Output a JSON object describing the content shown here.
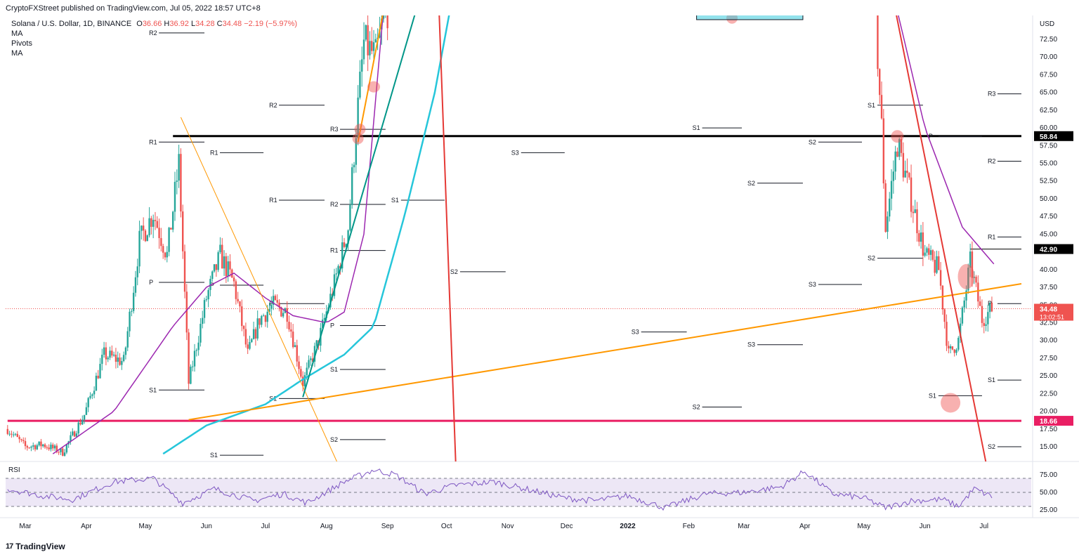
{
  "header": {
    "publisher_line": "CryptoFXStreet published on TradingView.com, Jul 05, 2022 18:57 UTC+8",
    "symbol": "Solana / U.S. Dollar, 1D, BINANCE",
    "o_label": "O",
    "o_value": "36.66",
    "h_label": "H",
    "h_value": "36.92",
    "l_label": "L",
    "l_value": "34.28",
    "c_label": "C",
    "c_value": "34.48",
    "change": "−2.19 (−5.97%)",
    "indicators": [
      "MA",
      "Pivots",
      "MA"
    ]
  },
  "branding": {
    "logo_text": "TradingView",
    "logo_mark": "17"
  },
  "colors": {
    "up": "#26a69a",
    "down": "#ef5350",
    "ma_fast": "#9c27b0",
    "ma_slow": "#26c6da",
    "orange": "#ff9800",
    "green_trend": "#009688",
    "red_trend": "#e53935",
    "level_black": "#000000",
    "level_pink": "#e91e63",
    "rsi": "#7e57c2",
    "rsi_band": "#ede7f6"
  },
  "chart_data": {
    "type": "candlestick",
    "currency": "USD",
    "y_ticks": [
      15.0,
      17.5,
      20.0,
      22.5,
      25.0,
      27.5,
      30.0,
      32.5,
      35.0,
      37.5,
      40.0,
      42.5,
      45.0,
      47.5,
      50.0,
      52.5,
      55.0,
      57.5,
      60.0,
      62.5,
      65.0,
      67.5,
      70.0,
      72.5
    ],
    "y_tick_labels": [
      "15.00",
      "17.50",
      "20.00",
      "22.50",
      "25.00",
      "27.50",
      "30.00",
      "32.50",
      "35.00",
      "37.50",
      "40.00",
      "42.50",
      "45.00",
      "47.50",
      "50.00",
      "52.50",
      "55.00",
      "57.50",
      "60.00",
      "62.50",
      "65.00",
      "67.50",
      "70.00",
      "72.50"
    ],
    "x_labels": [
      "Mar",
      "Apr",
      "May",
      "Jun",
      "Jul",
      "Aug",
      "Sep",
      "Oct",
      "Nov",
      "Dec",
      "2022",
      "Feb",
      "Mar",
      "Apr",
      "May",
      "Jun",
      "Jul"
    ],
    "price_badges": [
      {
        "value": 58.84,
        "label": "58.84",
        "color": "#000000"
      },
      {
        "value": 42.9,
        "label": "42.90",
        "color": "#000000"
      },
      {
        "value": 18.66,
        "label": "18.66",
        "color": "#e91e63"
      },
      {
        "value": 34.48,
        "label": "34.48",
        "sub": "13:02:51",
        "color": "#ef5350"
      }
    ],
    "horizontal_levels": [
      {
        "value": 58.84,
        "color": "#000000",
        "from": "2021-05-15",
        "to": "2022-07-20"
      },
      {
        "value": 18.66,
        "color": "#e91e63",
        "from": "2021-02-20",
        "to": "2022-07-20"
      },
      {
        "value": 42.9,
        "color": "#000000",
        "from": "2022-06-24",
        "to": "2022-07-20"
      }
    ],
    "pivot_lines": [
      {
        "label": "R2",
        "value": 73.4,
        "from": "2021-04-30",
        "to": "2021-05-31"
      },
      {
        "label": "R1",
        "value": 58.0,
        "from": "2021-04-30",
        "to": "2021-05-31"
      },
      {
        "label": "P",
        "value": 38.2,
        "from": "2021-04-30",
        "to": "2021-05-31"
      },
      {
        "label": "S1",
        "value": 23.0,
        "from": "2021-04-30",
        "to": "2021-05-31"
      },
      {
        "label": "R1",
        "value": 56.5,
        "from": "2021-05-31",
        "to": "2021-06-30"
      },
      {
        "label": "P",
        "value": 37.8,
        "from": "2021-05-31",
        "to": "2021-06-30"
      },
      {
        "label": "S1",
        "value": 13.8,
        "from": "2021-05-31",
        "to": "2021-06-30"
      },
      {
        "label": "R2",
        "value": 63.2,
        "from": "2021-06-30",
        "to": "2021-07-31"
      },
      {
        "label": "R1",
        "value": 49.8,
        "from": "2021-06-30",
        "to": "2021-07-31"
      },
      {
        "label": "P",
        "value": 35.2,
        "from": "2021-06-30",
        "to": "2021-07-31"
      },
      {
        "label": "S1",
        "value": 21.8,
        "from": "2021-06-30",
        "to": "2021-07-31"
      },
      {
        "label": "R3",
        "value": 59.8,
        "from": "2021-07-31",
        "to": "2021-08-31"
      },
      {
        "label": "R2",
        "value": 49.2,
        "from": "2021-07-31",
        "to": "2021-08-31"
      },
      {
        "label": "R1",
        "value": 42.7,
        "from": "2021-07-31",
        "to": "2021-08-31"
      },
      {
        "label": "P",
        "value": 32.1,
        "from": "2021-07-31",
        "to": "2021-08-31"
      },
      {
        "label": "S1",
        "value": 25.9,
        "from": "2021-07-31",
        "to": "2021-08-31"
      },
      {
        "label": "S2",
        "value": 16.0,
        "from": "2021-07-31",
        "to": "2021-08-31"
      },
      {
        "label": "S1",
        "value": 49.8,
        "from": "2021-08-31",
        "to": "2021-09-30"
      },
      {
        "label": "S2",
        "value": 39.7,
        "from": "2021-09-30",
        "to": "2021-10-31"
      },
      {
        "label": "S3",
        "value": 56.5,
        "from": "2021-10-31",
        "to": "2021-11-30"
      },
      {
        "label": "S3",
        "value": 31.2,
        "from": "2021-12-31",
        "to": "2022-01-31"
      },
      {
        "label": "S1",
        "value": 60.0,
        "from": "2022-01-31",
        "to": "2022-02-28"
      },
      {
        "label": "S2",
        "value": 20.6,
        "from": "2022-01-31",
        "to": "2022-02-28"
      },
      {
        "label": "S2",
        "value": 52.2,
        "from": "2022-02-28",
        "to": "2022-03-31"
      },
      {
        "label": "S3",
        "value": 29.4,
        "from": "2022-02-28",
        "to": "2022-03-31"
      },
      {
        "label": "S2",
        "value": 58.0,
        "from": "2022-03-31",
        "to": "2022-04-30"
      },
      {
        "label": "S3",
        "value": 37.9,
        "from": "2022-03-31",
        "to": "2022-04-30"
      },
      {
        "label": "S1",
        "value": 63.2,
        "from": "2022-04-30",
        "to": "2022-05-31"
      },
      {
        "label": "S2",
        "value": 41.6,
        "from": "2022-04-30",
        "to": "2022-05-31"
      },
      {
        "label": "P",
        "value": 58.8,
        "from": "2022-05-31",
        "to": "2022-06-30"
      },
      {
        "label": "S1",
        "value": 22.2,
        "from": "2022-05-31",
        "to": "2022-06-30"
      },
      {
        "label": "R3",
        "value": 64.8,
        "from": "2022-06-30",
        "to": "2022-07-20"
      },
      {
        "label": "R2",
        "value": 55.3,
        "from": "2022-06-30",
        "to": "2022-07-20"
      },
      {
        "label": "R1",
        "value": 44.6,
        "from": "2022-06-30",
        "to": "2022-07-20"
      },
      {
        "label": "P",
        "value": 35.2,
        "from": "2022-06-30",
        "to": "2022-07-20"
      },
      {
        "label": "S1",
        "value": 24.4,
        "from": "2022-06-30",
        "to": "2022-07-20"
      },
      {
        "label": "S2",
        "value": 15.0,
        "from": "2022-06-30",
        "to": "2022-07-20"
      }
    ],
    "trendlines": [
      {
        "color": "#ff9800",
        "width": 2,
        "p1": [
          "2021-05-23",
          18.8
        ],
        "p2": [
          "2022-07-20",
          38.0
        ]
      },
      {
        "color": "#ff9800",
        "width": 1,
        "p1": [
          "2021-05-19",
          61.5
        ],
        "p2": [
          "2021-08-11",
          10.0
        ]
      },
      {
        "color": "#ff9800",
        "width": 2,
        "p1": [
          "2021-08-17",
          58.0
        ],
        "p2": [
          "2021-08-31",
          78.0
        ]
      },
      {
        "color": "#009688",
        "width": 2,
        "p1": [
          "2021-07-20",
          22.0
        ],
        "p2": [
          "2021-09-17",
          78.0
        ]
      },
      {
        "color": "#e53935",
        "width": 2,
        "p1": [
          "2021-09-27",
          78.0
        ],
        "p2": [
          "2021-10-06",
          10.0
        ]
      },
      {
        "color": "#e53935",
        "width": 2,
        "p1": [
          "2022-05-16",
          78.0
        ],
        "p2": [
          "2022-07-04",
          10.0
        ]
      }
    ],
    "highlight_markers": [
      {
        "date": "2021-08-25",
        "value": 65.8,
        "rx": 9,
        "ry": 8
      },
      {
        "date": "2021-08-18",
        "value": 59.8,
        "rx": 8,
        "ry": 8
      },
      {
        "date": "2021-08-17",
        "value": 58.5,
        "rx": 8,
        "ry": 8
      },
      {
        "date": "2022-02-23",
        "value": 75.5,
        "rx": 8,
        "ry": 8
      },
      {
        "date": "2022-05-18",
        "value": 58.8,
        "rx": 9,
        "ry": 9
      },
      {
        "date": "2022-06-22",
        "value": 39.0,
        "rx": 12,
        "ry": 18
      },
      {
        "date": "2022-06-14",
        "value": 21.2,
        "rx": 14,
        "ry": 14
      }
    ],
    "price_anchors": [
      [
        "2021-02-20",
        17.5
      ],
      [
        "2021-03-01",
        15.0
      ],
      [
        "2021-03-10",
        15.3
      ],
      [
        "2021-03-20",
        14.2
      ],
      [
        "2021-03-31",
        19.5
      ],
      [
        "2021-04-10",
        28.0
      ],
      [
        "2021-04-20",
        27.0
      ],
      [
        "2021-04-28",
        44.0
      ],
      [
        "2021-05-05",
        48.0
      ],
      [
        "2021-05-12",
        42.0
      ],
      [
        "2021-05-18",
        55.0
      ],
      [
        "2021-05-23",
        24.0
      ],
      [
        "2021-06-01",
        36.0
      ],
      [
        "2021-06-08",
        42.0
      ],
      [
        "2021-06-15",
        38.0
      ],
      [
        "2021-06-22",
        28.0
      ],
      [
        "2021-06-28",
        33.0
      ],
      [
        "2021-07-05",
        35.0
      ],
      [
        "2021-07-12",
        34.0
      ],
      [
        "2021-07-20",
        24.0
      ],
      [
        "2021-07-28",
        30.0
      ],
      [
        "2021-08-05",
        38.0
      ],
      [
        "2021-08-12",
        46.0
      ],
      [
        "2021-08-16",
        60.0
      ],
      [
        "2021-08-20",
        72.0
      ],
      [
        "2021-08-26",
        70.0
      ],
      [
        "2021-08-31",
        77.0
      ],
      [
        "2022-05-06",
        80.0
      ],
      [
        "2022-05-10",
        60.0
      ],
      [
        "2022-05-12",
        46.0
      ],
      [
        "2022-05-18",
        58.0
      ],
      [
        "2022-05-25",
        50.0
      ],
      [
        "2022-06-01",
        42.0
      ],
      [
        "2022-06-08",
        40.0
      ],
      [
        "2022-06-13",
        28.0
      ],
      [
        "2022-06-18",
        30.0
      ],
      [
        "2022-06-24",
        41.0
      ],
      [
        "2022-06-30",
        33.0
      ],
      [
        "2022-07-05",
        34.48
      ]
    ],
    "ma_fast_anchors": [
      [
        "2021-03-15",
        14.0
      ],
      [
        "2021-04-15",
        20.0
      ],
      [
        "2021-05-15",
        32.0
      ],
      [
        "2021-06-01",
        37.5
      ],
      [
        "2021-06-15",
        39.5
      ],
      [
        "2021-07-01",
        36.0
      ],
      [
        "2021-07-15",
        33.5
      ],
      [
        "2021-08-01",
        32.5
      ],
      [
        "2021-08-10",
        34.0
      ],
      [
        "2021-08-20",
        45.0
      ],
      [
        "2021-08-31",
        80.0
      ],
      [
        "2022-05-15",
        80.0
      ],
      [
        "2022-06-01",
        60.0
      ],
      [
        "2022-06-20",
        46.0
      ],
      [
        "2022-07-06",
        40.8
      ]
    ],
    "ma_slow_anchors": [
      [
        "2021-05-10",
        14.0
      ],
      [
        "2021-06-01",
        18.0
      ],
      [
        "2021-07-01",
        21.0
      ],
      [
        "2021-07-20",
        24.5
      ],
      [
        "2021-08-10",
        28.0
      ],
      [
        "2021-08-25",
        32.0
      ],
      [
        "2021-09-10",
        48.0
      ],
      [
        "2021-09-25",
        65.0
      ],
      [
        "2021-10-05",
        80.0
      ]
    ],
    "rsi": {
      "label": "RSI",
      "levels": [
        70,
        50,
        30
      ],
      "tick_labels": [
        "75.00",
        "50.00",
        "25.00"
      ],
      "ticks": [
        75,
        50,
        25
      ],
      "anchors": [
        [
          "2021-02-20",
          55
        ],
        [
          "2021-03-10",
          45
        ],
        [
          "2021-03-25",
          40
        ],
        [
          "2021-04-15",
          65
        ],
        [
          "2021-05-05",
          70
        ],
        [
          "2021-05-20",
          35
        ],
        [
          "2021-06-05",
          55
        ],
        [
          "2021-06-25",
          38
        ],
        [
          "2021-07-10",
          48
        ],
        [
          "2021-07-22",
          35
        ],
        [
          "2021-08-10",
          65
        ],
        [
          "2021-08-25",
          82
        ],
        [
          "2021-09-05",
          75
        ],
        [
          "2021-09-20",
          48
        ],
        [
          "2021-10-05",
          60
        ],
        [
          "2021-10-25",
          65
        ],
        [
          "2021-11-10",
          55
        ],
        [
          "2021-11-30",
          42
        ],
        [
          "2021-12-15",
          38
        ],
        [
          "2022-01-01",
          45
        ],
        [
          "2022-01-20",
          28
        ],
        [
          "2022-02-10",
          48
        ],
        [
          "2022-03-01",
          50
        ],
        [
          "2022-03-20",
          58
        ],
        [
          "2022-04-01",
          80
        ],
        [
          "2022-04-15",
          48
        ],
        [
          "2022-05-01",
          42
        ],
        [
          "2022-05-12",
          28
        ],
        [
          "2022-05-25",
          38
        ],
        [
          "2022-06-10",
          40
        ],
        [
          "2022-06-18",
          30
        ],
        [
          "2022-06-26",
          55
        ],
        [
          "2022-07-05",
          44
        ]
      ]
    }
  }
}
